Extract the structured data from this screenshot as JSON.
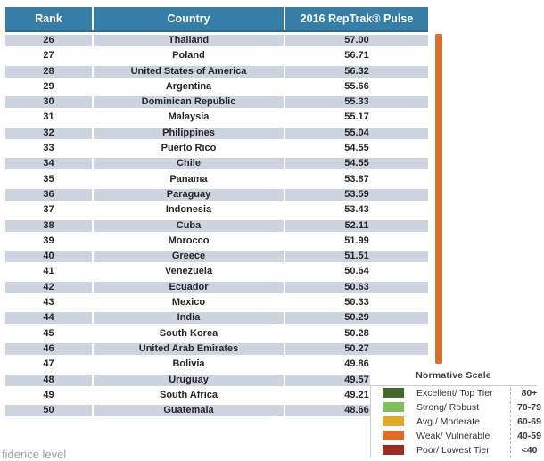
{
  "table": {
    "headers": {
      "rank": "Rank",
      "country": "Country",
      "pulse": "2016 RepTrak® Pulse"
    },
    "rows": [
      {
        "rank": "26",
        "country": "Thailand",
        "pulse": "57.00"
      },
      {
        "rank": "27",
        "country": "Poland",
        "pulse": "56.71"
      },
      {
        "rank": "28",
        "country": "United States of America",
        "pulse": "56.32"
      },
      {
        "rank": "29",
        "country": "Argentina",
        "pulse": "55.66"
      },
      {
        "rank": "30",
        "country": "Dominican Republic",
        "pulse": "55.33"
      },
      {
        "rank": "31",
        "country": "Malaysia",
        "pulse": "55.17"
      },
      {
        "rank": "32",
        "country": "Philippines",
        "pulse": "55.04"
      },
      {
        "rank": "33",
        "country": "Puerto Rico",
        "pulse": "54.55"
      },
      {
        "rank": "34",
        "country": "Chile",
        "pulse": "54.55"
      },
      {
        "rank": "35",
        "country": "Panama",
        "pulse": "53.87"
      },
      {
        "rank": "36",
        "country": "Paraguay",
        "pulse": "53.59"
      },
      {
        "rank": "37",
        "country": "Indonesia",
        "pulse": "53.43"
      },
      {
        "rank": "38",
        "country": "Cuba",
        "pulse": "52.11"
      },
      {
        "rank": "39",
        "country": "Morocco",
        "pulse": "51.99"
      },
      {
        "rank": "40",
        "country": "Greece",
        "pulse": "51.51"
      },
      {
        "rank": "41",
        "country": "Venezuela",
        "pulse": "50.64"
      },
      {
        "rank": "42",
        "country": "Ecuador",
        "pulse": "50.63"
      },
      {
        "rank": "43",
        "country": "Mexico",
        "pulse": "50.33"
      },
      {
        "rank": "44",
        "country": "India",
        "pulse": "50.29"
      },
      {
        "rank": "45",
        "country": "South Korea",
        "pulse": "50.28"
      },
      {
        "rank": "46",
        "country": "United Arab Emirates",
        "pulse": "50.27"
      },
      {
        "rank": "47",
        "country": "Bolivia",
        "pulse": "49.86"
      },
      {
        "rank": "48",
        "country": "Uruguay",
        "pulse": "49.57"
      },
      {
        "rank": "49",
        "country": "South Africa",
        "pulse": "49.21"
      },
      {
        "rank": "50",
        "country": "Guatemala",
        "pulse": "48.66"
      }
    ]
  },
  "legend": {
    "title": "Normative Scale",
    "entries": [
      {
        "label": "Excellent/ Top Tier",
        "range": "80+",
        "color": "#44682b"
      },
      {
        "label": "Strong/ Robust",
        "range": "70-79",
        "color": "#7fbf5d"
      },
      {
        "label": "Avg./ Moderate",
        "range": "60-69",
        "color": "#e4a923"
      },
      {
        "label": "Weak/ Vulnerable",
        "range": "40-59",
        "color": "#e16c26"
      },
      {
        "label": "Poor/ Lowest Tier",
        "range": "<40",
        "color": "#9e2a22"
      }
    ]
  },
  "footnote_partial": "fidence level",
  "colors": {
    "header_bg": "#347ea8",
    "header_border_bottom": "#2d6e95",
    "row_stripe": "#cdd4e0",
    "marker_bar": "#d7702c",
    "legend_border": "#c9cdd1",
    "text_dark": "#262626",
    "footnote_gray": "#9aa0a6"
  }
}
